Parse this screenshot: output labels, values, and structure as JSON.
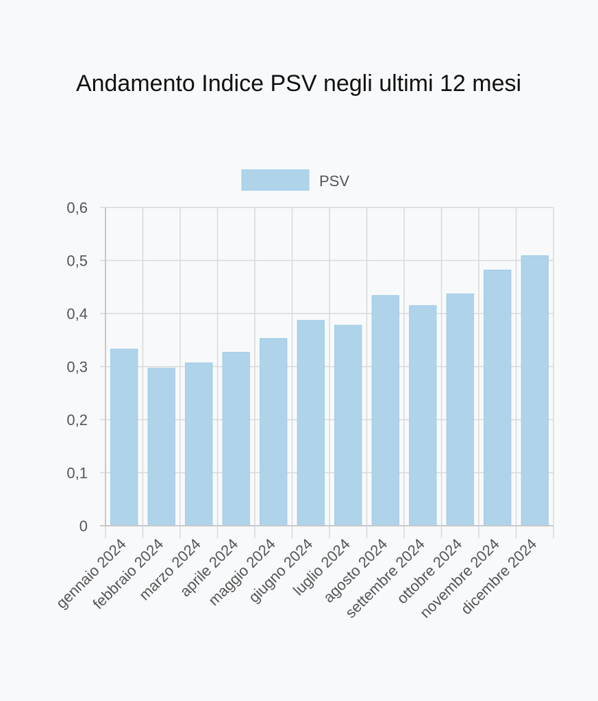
{
  "chart_data": {
    "type": "bar",
    "title": "Andamento Indice PSV negli ultimi 12 mesi",
    "categories": [
      "gennaio 2024",
      "febbraio 2024",
      "marzo 2024",
      "aprile 2024",
      "maggio 2024",
      "giugno 2024",
      "luglio 2024",
      "agosto 2024",
      "settembre 2024",
      "ottobre 2024",
      "novembre 2024",
      "dicembre 2024"
    ],
    "series": [
      {
        "name": "PSV",
        "values": [
          0.333,
          0.297,
          0.307,
          0.327,
          0.353,
          0.387,
          0.378,
          0.434,
          0.415,
          0.437,
          0.482,
          0.509
        ]
      }
    ],
    "ylim": [
      0,
      0.6
    ],
    "yticks": [
      "0",
      "0,1",
      "0,2",
      "0,3",
      "0,4",
      "0,5",
      "0,6"
    ],
    "ytick_values": [
      0,
      0.1,
      0.2,
      0.3,
      0.4,
      0.5,
      0.6
    ],
    "grid": true,
    "legend": "top-center",
    "colors": {
      "bar_fill": "#afd4ea",
      "bar_stroke": "#9dcae5",
      "grid": "#d9d9d9",
      "axis": "#c8c8c8"
    }
  }
}
